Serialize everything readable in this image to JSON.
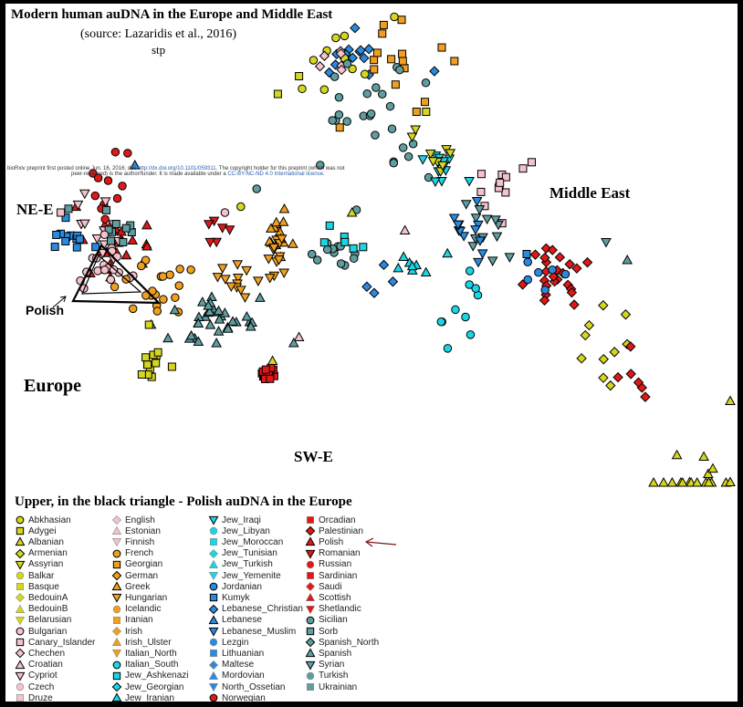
{
  "chart_data": {
    "type": "scatter",
    "title": "Modern human auDNA in the Europe and Middle East",
    "subtitle": "(source: Lazaridis et al., 2016)",
    "credit": "stp",
    "preprint_note": {
      "line1_a": "bioRxiv preprint first posted online Jun. 16, 2016; doi: ",
      "line1_link": "http://dx.doi.org/10.1101/059311",
      "line1_b": ". The copyright holder for this preprint (which was not",
      "line2_a": "peer-reviewed) is the author/funder. It is made available under a ",
      "line2_link": "CC-BY-NC-ND 4.0 International license",
      "line2_b": "."
    },
    "annotations": {
      "ne_e": "NE-E",
      "polish": "Polish",
      "europe": "Europe",
      "middle_east": "Middle East",
      "sw_e": "SW-E"
    },
    "legend_title": "Upper, in the black triangle - Polish auDNA in the Europe",
    "legend": [
      {
        "name": "Abkhasian",
        "shape": "circle",
        "color": "#d6d61e"
      },
      {
        "name": "Adygei",
        "shape": "square",
        "color": "#d6d61e"
      },
      {
        "name": "Albanian",
        "shape": "triangle",
        "color": "#d6d61e"
      },
      {
        "name": "Armenian",
        "shape": "diamond",
        "color": "#d6d61e"
      },
      {
        "name": "Assyrian",
        "shape": "triangle-down",
        "color": "#d6d61e"
      },
      {
        "name": "Balkar",
        "shape": "circle",
        "color": "#d6d61e",
        "plain": true
      },
      {
        "name": "Basque",
        "shape": "square",
        "color": "#d6d61e",
        "plain": true
      },
      {
        "name": "BedouinA",
        "shape": "diamond",
        "color": "#d6d61e",
        "plain": true
      },
      {
        "name": "BedouinB",
        "shape": "triangle",
        "color": "#d6d61e",
        "plain": true
      },
      {
        "name": "Belarusian",
        "shape": "triangle-down",
        "color": "#d6d61e",
        "plain": true
      },
      {
        "name": "Bulgarian",
        "shape": "circle",
        "color": "#f4c2cb"
      },
      {
        "name": "Canary_Islander",
        "shape": "square",
        "color": "#f4c2cb"
      },
      {
        "name": "Chechen",
        "shape": "diamond",
        "color": "#f4c2cb"
      },
      {
        "name": "Croatian",
        "shape": "triangle",
        "color": "#f4c2cb"
      },
      {
        "name": "Cypriot",
        "shape": "triangle-down",
        "color": "#f4c2cb"
      },
      {
        "name": "Czech",
        "shape": "circle",
        "color": "#f4c2cb",
        "plain": true
      },
      {
        "name": "Druze",
        "shape": "square",
        "color": "#f4c2cb",
        "plain": true
      },
      {
        "name": "English",
        "shape": "diamond",
        "color": "#f4c2cb",
        "plain": true
      },
      {
        "name": "Estonian",
        "shape": "triangle",
        "color": "#f4c2cb",
        "plain": true
      },
      {
        "name": "Finnish",
        "shape": "triangle-down",
        "color": "#f4c2cb",
        "plain": true
      },
      {
        "name": "French",
        "shape": "circle",
        "color": "#f0a01e"
      },
      {
        "name": "Georgian",
        "shape": "square",
        "color": "#f0a01e"
      },
      {
        "name": "German",
        "shape": "diamond",
        "color": "#f0a01e"
      },
      {
        "name": "Greek",
        "shape": "triangle",
        "color": "#f0a01e"
      },
      {
        "name": "Hungarian",
        "shape": "triangle-down",
        "color": "#f0a01e"
      },
      {
        "name": "Icelandic",
        "shape": "circle",
        "color": "#f0a01e",
        "plain": true
      },
      {
        "name": "Iranian",
        "shape": "square",
        "color": "#f0a01e",
        "plain": true
      },
      {
        "name": "Irish",
        "shape": "diamond",
        "color": "#f0a01e",
        "plain": true
      },
      {
        "name": "Irish_Ulster",
        "shape": "triangle",
        "color": "#f0a01e",
        "plain": true
      },
      {
        "name": "Italian_North",
        "shape": "triangle-down",
        "color": "#f0a01e",
        "plain": true
      },
      {
        "name": "Italian_South",
        "shape": "circle",
        "color": "#19d6e6"
      },
      {
        "name": "Jew_Ashkenazi",
        "shape": "square",
        "color": "#19d6e6"
      },
      {
        "name": "Jew_Georgian",
        "shape": "diamond",
        "color": "#19d6e6"
      },
      {
        "name": "Jew_Iranian",
        "shape": "triangle",
        "color": "#19d6e6"
      },
      {
        "name": "Jew_Iraqi",
        "shape": "triangle-down",
        "color": "#19d6e6"
      },
      {
        "name": "Jew_Libyan",
        "shape": "circle",
        "color": "#19d6e6",
        "plain": true
      },
      {
        "name": "Jew_Moroccan",
        "shape": "square",
        "color": "#19d6e6",
        "plain": true
      },
      {
        "name": "Jew_Tunisian",
        "shape": "diamond",
        "color": "#19d6e6",
        "plain": true
      },
      {
        "name": "Jew_Turkish",
        "shape": "triangle",
        "color": "#19d6e6",
        "plain": true
      },
      {
        "name": "Jew_Yemenite",
        "shape": "triangle-down",
        "color": "#19d6e6",
        "plain": true
      },
      {
        "name": "Jordanian",
        "shape": "circle",
        "color": "#2a8ae0"
      },
      {
        "name": "Kumyk",
        "shape": "square",
        "color": "#2a8ae0"
      },
      {
        "name": "Lebanese_Christian",
        "shape": "diamond",
        "color": "#2a8ae0"
      },
      {
        "name": "Lebanese",
        "shape": "triangle",
        "color": "#2a8ae0"
      },
      {
        "name": "Lebanese_Muslim",
        "shape": "triangle-down",
        "color": "#2a8ae0"
      },
      {
        "name": "Lezgin",
        "shape": "circle",
        "color": "#2a8ae0",
        "plain": true
      },
      {
        "name": "Lithuanian",
        "shape": "square",
        "color": "#2a8ae0",
        "plain": true
      },
      {
        "name": "Maltese",
        "shape": "diamond",
        "color": "#2a8ae0",
        "plain": true
      },
      {
        "name": "Mordovian",
        "shape": "triangle",
        "color": "#2a8ae0",
        "plain": true
      },
      {
        "name": "North_Ossetian",
        "shape": "triangle-down",
        "color": "#2a8ae0",
        "plain": true
      },
      {
        "name": "Norwegian",
        "shape": "circle",
        "color": "#e01818"
      },
      {
        "name": "Orcadian",
        "shape": "square",
        "color": "#e01818",
        "plain": true
      },
      {
        "name": "Palestinian",
        "shape": "diamond",
        "color": "#e01818"
      },
      {
        "name": "Polish",
        "shape": "triangle",
        "color": "#e01818"
      },
      {
        "name": "Romanian",
        "shape": "triangle-down",
        "color": "#e01818"
      },
      {
        "name": "Russian",
        "shape": "circle",
        "color": "#e01818",
        "plain": true
      },
      {
        "name": "Sardinian",
        "shape": "square",
        "color": "#e01818",
        "plain": true
      },
      {
        "name": "Saudi",
        "shape": "diamond",
        "color": "#e01818",
        "plain": true
      },
      {
        "name": "Scottish",
        "shape": "triangle",
        "color": "#e01818",
        "plain": true
      },
      {
        "name": "Shetlandic",
        "shape": "triangle-down",
        "color": "#e01818",
        "plain": true
      },
      {
        "name": "Sicilian",
        "shape": "circle",
        "color": "#5f9ea0"
      },
      {
        "name": "Sorb",
        "shape": "square",
        "color": "#5f9ea0"
      },
      {
        "name": "Spanish_North",
        "shape": "diamond",
        "color": "#5f9ea0"
      },
      {
        "name": "Spanish",
        "shape": "triangle",
        "color": "#5f9ea0"
      },
      {
        "name": "Syrian",
        "shape": "triangle-down",
        "color": "#5f9ea0"
      },
      {
        "name": "Turkish",
        "shape": "circle",
        "color": "#5f9ea0",
        "plain": true
      },
      {
        "name": "Ukrainian",
        "shape": "square",
        "color": "#5f9ea0",
        "plain": true
      }
    ],
    "clusters": [
      {
        "name": "Caucasus",
        "color": "#2a8ae0",
        "shape": "diamond",
        "cx": 62,
        "cy": 9,
        "sx": 4,
        "sy": 3,
        "n": 14
      },
      {
        "name": "Caucasus-yellow",
        "color": "#d6d61e",
        "shape": "circle",
        "cx": 62,
        "cy": 8,
        "sx": 5,
        "sy": 3,
        "n": 10
      },
      {
        "name": "Georgian",
        "color": "#f0a01e",
        "shape": "square",
        "cx": 70,
        "cy": 8,
        "sx": 5,
        "sy": 4,
        "n": 16
      },
      {
        "name": "Pink-north",
        "color": "#f4c2cb",
        "shape": "diamond",
        "cx": 58,
        "cy": 9,
        "sx": 3,
        "sy": 2,
        "n": 6
      },
      {
        "name": "Iranian-turkish",
        "color": "#5f9ea0",
        "shape": "circle",
        "cx": 66,
        "cy": 17,
        "sx": 6,
        "sy": 5,
        "n": 26
      },
      {
        "name": "Jew-Iraqi",
        "color": "#19d6e6",
        "shape": "triangle-down",
        "cx": 78,
        "cy": 26,
        "sx": 2.5,
        "sy": 2,
        "n": 12
      },
      {
        "name": "Iraqi-yellow",
        "color": "#d6d61e",
        "shape": "triangle-down",
        "cx": 79,
        "cy": 25,
        "sx": 3,
        "sy": 2.5,
        "n": 8
      },
      {
        "name": "Druze-pink",
        "color": "#f4c2cb",
        "shape": "square",
        "cx": 89,
        "cy": 30,
        "sx": 3,
        "sy": 3,
        "n": 12
      },
      {
        "name": "Armenian-teal",
        "color": "#5f9ea0",
        "shape": "triangle-down",
        "cx": 86,
        "cy": 36,
        "sx": 3,
        "sy": 3,
        "n": 12
      },
      {
        "name": "Lebanese",
        "color": "#2a8ae0",
        "shape": "triangle-down",
        "cx": 85,
        "cy": 37,
        "sx": 3,
        "sy": 3,
        "n": 12
      },
      {
        "name": "Palestinian",
        "color": "#e01818",
        "shape": "diamond",
        "cx": 101,
        "cy": 45,
        "sx": 3,
        "sy": 3,
        "n": 24
      },
      {
        "name": "Jordanian",
        "color": "#2a8ae0",
        "shape": "circle",
        "cx": 98,
        "cy": 44,
        "sx": 3,
        "sy": 3,
        "n": 6
      },
      {
        "name": "Saudi-yellow",
        "color": "#d6d61e",
        "shape": "diamond",
        "cx": 110,
        "cy": 56,
        "sx": 3,
        "sy": 4,
        "n": 10
      },
      {
        "name": "Bedouin",
        "color": "#d6d61e",
        "shape": "triangle",
        "cx": 127,
        "cy": 80,
        "sx": 4,
        "sy": 6,
        "n": 18
      },
      {
        "name": "Saudi",
        "color": "#e01818",
        "shape": "diamond",
        "cx": 116,
        "cy": 64,
        "sx": 2,
        "sy": 3,
        "n": 6
      },
      {
        "name": "Polish",
        "color": "#e01818",
        "shape": "triangle",
        "cx": 18,
        "cy": 40,
        "sx": 3,
        "sy": 2,
        "n": 26
      },
      {
        "name": "Russian",
        "color": "#e01818",
        "shape": "circle",
        "cx": 16,
        "cy": 31,
        "sx": 2,
        "sy": 3,
        "n": 12
      },
      {
        "name": "Estonian",
        "color": "#f4c2cb",
        "shape": "triangle-down",
        "cx": 14,
        "cy": 37,
        "sx": 3,
        "sy": 3,
        "n": 14
      },
      {
        "name": "Lithuanian",
        "color": "#2a8ae0",
        "shape": "square",
        "cx": 9,
        "cy": 38,
        "sx": 2.5,
        "sy": 1.5,
        "n": 12
      },
      {
        "name": "Ukrainian",
        "color": "#5f9ea0",
        "shape": "square",
        "cx": 17,
        "cy": 37,
        "sx": 2,
        "sy": 1.5,
        "n": 10
      },
      {
        "name": "Czech",
        "color": "#f4c2cb",
        "shape": "circle",
        "cx": 17,
        "cy": 43,
        "sx": 3,
        "sy": 2,
        "n": 18
      },
      {
        "name": "Hungarian",
        "color": "#f0a01e",
        "shape": "circle",
        "cx": 25,
        "cy": 47,
        "sx": 4,
        "sy": 3,
        "n": 20
      },
      {
        "name": "Romanian",
        "color": "#e01818",
        "shape": "triangle-down",
        "cx": 37,
        "cy": 37,
        "sx": 2,
        "sy": 1,
        "n": 6
      },
      {
        "name": "Italian-north",
        "color": "#f0a01e",
        "shape": "triangle",
        "cx": 47,
        "cy": 38,
        "sx": 2,
        "sy": 2,
        "n": 14
      },
      {
        "name": "Italian-south",
        "color": "#f0a01e",
        "shape": "triangle-down",
        "cx": 41,
        "cy": 45,
        "sx": 2,
        "sy": 2,
        "n": 12
      },
      {
        "name": "Greek",
        "color": "#f0a01e",
        "shape": "triangle-down",
        "cx": 48,
        "cy": 41,
        "sx": 2,
        "sy": 2,
        "n": 12
      },
      {
        "name": "Spanish",
        "color": "#5f9ea0",
        "shape": "triangle",
        "cx": 36,
        "cy": 52,
        "sx": 5,
        "sy": 2,
        "n": 36
      },
      {
        "name": "Basque",
        "color": "#d6d61e",
        "shape": "square",
        "cx": 24,
        "cy": 59,
        "sx": 1.5,
        "sy": 1.5,
        "n": 12
      },
      {
        "name": "Sardinian",
        "color": "#e01818",
        "shape": "square",
        "cx": 46,
        "cy": 61,
        "sx": 1,
        "sy": 1,
        "n": 14
      },
      {
        "name": "Sicilian",
        "color": "#5f9ea0",
        "shape": "circle",
        "cx": 59,
        "cy": 41,
        "sx": 2,
        "sy": 2,
        "n": 12
      },
      {
        "name": "Jew-cyan",
        "color": "#19d6e6",
        "shape": "square",
        "cx": 60,
        "cy": 39,
        "sx": 2,
        "sy": 1.5,
        "n": 6
      },
      {
        "name": "Jew-moroccan",
        "color": "#19d6e6",
        "shape": "circle",
        "cx": 84,
        "cy": 50,
        "sx": 3,
        "sy": 3,
        "n": 10
      },
      {
        "name": "Jew-tunisian",
        "color": "#19d6e6",
        "shape": "triangle",
        "cx": 74,
        "cy": 42,
        "sx": 3,
        "sy": 2,
        "n": 8
      },
      {
        "name": "Jew-georgian",
        "color": "#2a8ae0",
        "shape": "diamond",
        "cx": 68,
        "cy": 46,
        "sx": 2,
        "sy": 1,
        "n": 4
      }
    ],
    "outliers": [
      {
        "x": 70,
        "y": 1,
        "color": "#d6d61e",
        "shape": "circle"
      },
      {
        "x": 48,
        "y": 14,
        "color": "#d6d61e",
        "shape": "square"
      },
      {
        "x": 52,
        "y": 11,
        "color": "#d6d61e",
        "shape": "square"
      },
      {
        "x": 56,
        "y": 26,
        "color": "#5f9ea0",
        "shape": "circle"
      },
      {
        "x": 44,
        "y": 30,
        "color": "#5f9ea0",
        "shape": "circle"
      },
      {
        "x": 76,
        "y": 17,
        "color": "#d6d61e",
        "shape": "square"
      },
      {
        "x": 74,
        "y": 20,
        "color": "#d6d61e",
        "shape": "triangle-down"
      },
      {
        "x": 110,
        "y": 39,
        "color": "#5f9ea0",
        "shape": "triangle-down"
      },
      {
        "x": 114,
        "y": 42,
        "color": "#5f9ea0",
        "shape": "triangle"
      },
      {
        "x": 95,
        "y": 41,
        "color": "#2a8ae0",
        "shape": "square"
      },
      {
        "x": 62,
        "y": 34,
        "color": "#d6d61e",
        "shape": "triangle"
      },
      {
        "x": 72,
        "y": 37,
        "color": "#f4c2cb",
        "shape": "triangle"
      },
      {
        "x": 38,
        "y": 34,
        "color": "#f4c2cb",
        "shape": "circle"
      },
      {
        "x": 41,
        "y": 33,
        "color": "#d6d61e",
        "shape": "circle"
      },
      {
        "x": 21,
        "y": 26,
        "color": "#2a8ae0",
        "shape": "triangle"
      },
      {
        "x": 7,
        "y": 34,
        "color": "#f4c2cb",
        "shape": "square"
      },
      {
        "x": 28,
        "y": 60,
        "color": "#d6d61e",
        "shape": "square"
      },
      {
        "x": 52,
        "y": 55,
        "color": "#f4c2cb",
        "shape": "triangle"
      },
      {
        "x": 51,
        "y": 56,
        "color": "#5f9ea0",
        "shape": "triangle"
      },
      {
        "x": 47,
        "y": 59,
        "color": "#d6d61e",
        "shape": "triangle"
      }
    ]
  }
}
